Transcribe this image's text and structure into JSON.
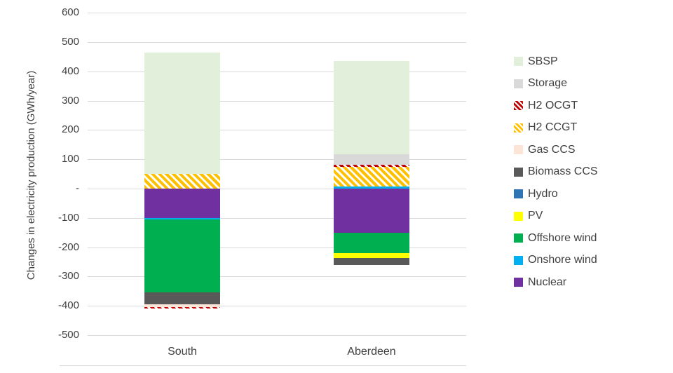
{
  "chart_data": {
    "type": "bar",
    "variant": "stacked-column",
    "title": "",
    "xlabel": "",
    "ylabel": "Changes in electricity production (GWh/year)",
    "categories": [
      "South",
      "Aberdeen"
    ],
    "ylim": [
      -500,
      600
    ],
    "ytick_step": 100,
    "zero_tick_label": "-",
    "grid": "horizontal",
    "legend_position": "right",
    "stacking_note": "series stack outward from zero in reverse legend order (Nuclear nearest zero, SBSP outermost)",
    "series": [
      {
        "name": "SBSP",
        "color": "#e2efda",
        "pattern": "none",
        "values": [
          415,
          320
        ]
      },
      {
        "name": "Storage",
        "color": "#d9d9d9",
        "pattern": "none",
        "values": [
          0,
          35
        ]
      },
      {
        "name": "H2 OCGT",
        "color": "#c00000",
        "pattern": "diagonal-white",
        "values": [
          -5,
          8
        ]
      },
      {
        "name": "H2 CCGT",
        "color": "#ffc000",
        "pattern": "diagonal-white",
        "values": [
          50,
          65
        ]
      },
      {
        "name": "Gas CCS",
        "color": "#fce4d6",
        "pattern": "none",
        "values": [
          -10,
          0
        ]
      },
      {
        "name": "Biomass CCS",
        "color": "#595959",
        "pattern": "none",
        "values": [
          -40,
          -22
        ]
      },
      {
        "name": "Hydro",
        "color": "#2e75b6",
        "pattern": "none",
        "values": [
          0,
          0
        ]
      },
      {
        "name": "PV",
        "color": "#ffff00",
        "pattern": "none",
        "values": [
          0,
          -18
        ]
      },
      {
        "name": "Offshore wind",
        "color": "#00b050",
        "pattern": "none",
        "values": [
          -250,
          -70
        ]
      },
      {
        "name": "Onshore wind",
        "color": "#00b0f0",
        "pattern": "none",
        "values": [
          -5,
          8
        ]
      },
      {
        "name": "Nuclear",
        "color": "#7030a0",
        "pattern": "none",
        "values": [
          -100,
          -150
        ]
      }
    ],
    "style": {
      "gridline_color": "#d9d9d9",
      "axis_text_color": "#404040",
      "background": "#ffffff"
    }
  }
}
